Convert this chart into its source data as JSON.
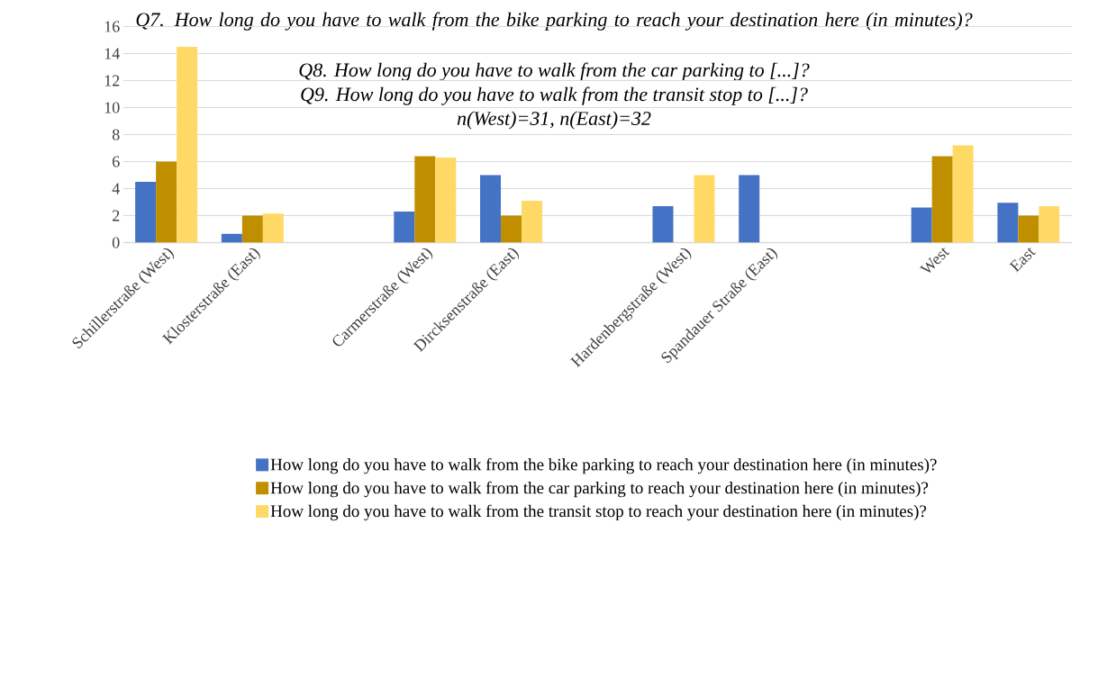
{
  "chart_data": {
    "type": "bar",
    "title": "Q7.   How long do you have to walk from the bike parking to reach your destination here (in minutes)?",
    "subtitle": "n(West)=31, n(East)=32",
    "annotations": [
      "Q8. How long do you have to walk from the car parking to [...]?",
      "Q9. How long do you have to walk from the transit stop to [...]?"
    ],
    "categories": [
      "Schillerstraße (West)",
      "Klosterstraße (East)",
      null,
      "Carmerstraße (West)",
      "Dircksenstraße (East)",
      null,
      "Hardenbergstraße (West)",
      "Spandauer Straße (East)",
      null,
      "West",
      "East"
    ],
    "series": [
      {
        "name": "How long do you have to walk from the bike parking to reach your destination here (in minutes)?",
        "color": "#4472c4",
        "values": [
          4.5,
          0.65,
          null,
          2.3,
          5,
          null,
          2.7,
          5,
          null,
          2.6,
          2.95
        ]
      },
      {
        "name": "How long do you have to walk from the car parking to reach your destination here (in minutes)?",
        "color": "#bf8f00",
        "values": [
          6,
          2,
          null,
          6.4,
          2,
          null,
          null,
          null,
          null,
          6.4,
          2
        ]
      },
      {
        "name": "How long do you have to walk from the transit stop to reach your destination here (in minutes)?",
        "color": "#ffd966",
        "values": [
          14.5,
          2.15,
          null,
          6.3,
          3.1,
          null,
          5,
          null,
          null,
          7.2,
          2.7
        ]
      }
    ],
    "ylim": [
      0,
      16
    ],
    "yticks": [
      0,
      2,
      4,
      6,
      8,
      10,
      12,
      14,
      16
    ],
    "grid": "y",
    "legend": "bottom"
  }
}
